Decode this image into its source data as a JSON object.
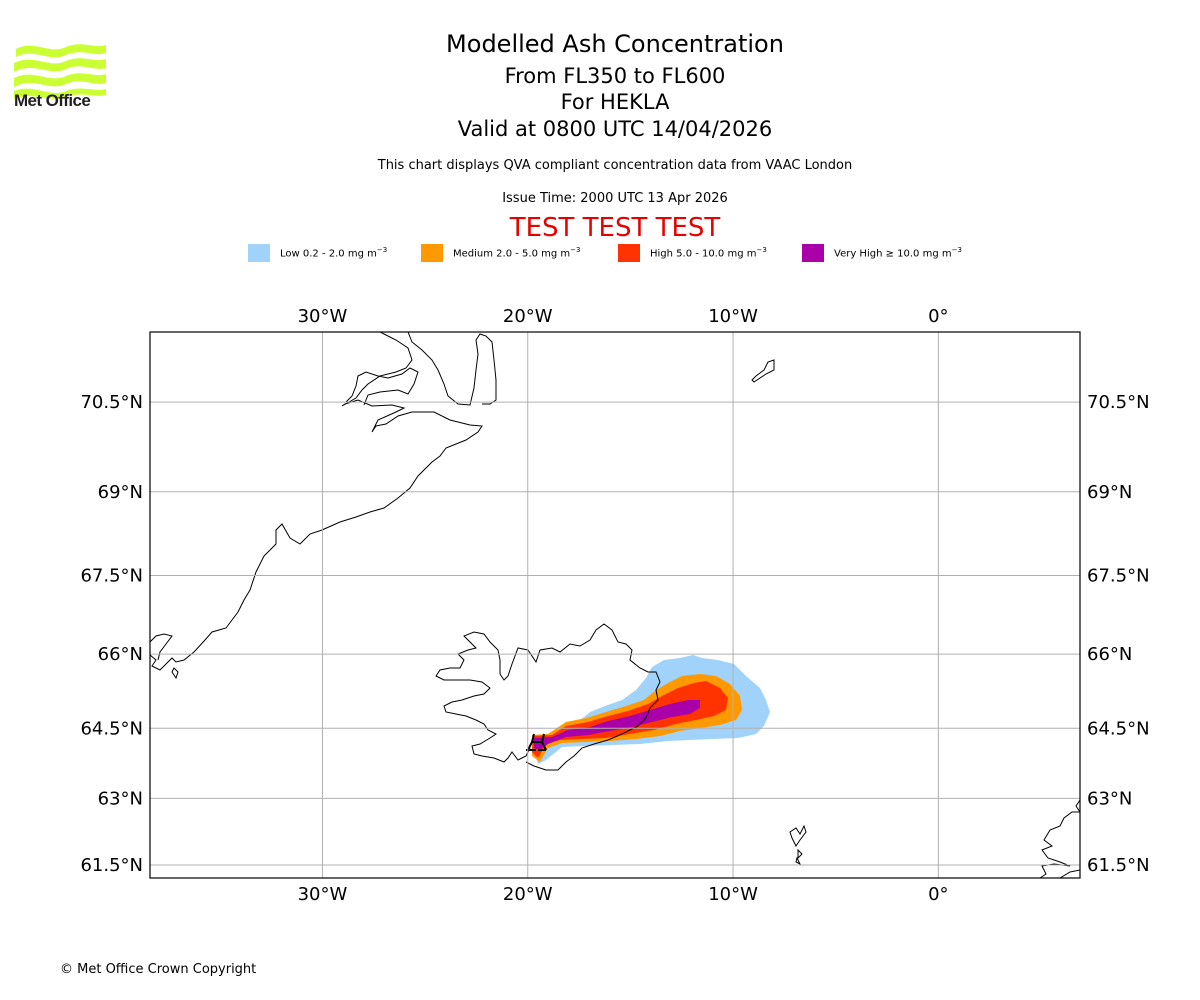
{
  "header": {
    "logo_text": "Met Office",
    "title": "Modelled Ash Concentration",
    "flight_levels": "From FL350 to FL600",
    "volcano": "For HEKLA",
    "valid_time": "Valid at 0800 UTC 14/04/2026",
    "description": "This chart displays QVA compliant concentration data from VAAC London",
    "issue_time": "Issue Time: 2000 UTC 13 Apr 2026",
    "test_banner": "TEST TEST TEST"
  },
  "colors": {
    "logo_green": "#ccff33",
    "low": "#a0d2fa",
    "medium": "#ff9900",
    "high": "#ff3300",
    "very_high": "#aa00aa",
    "test_banner": "#e60000",
    "gridline": "#b0b0b0"
  },
  "legend": [
    {
      "level": "Low",
      "text": "Low 0.2 - 2.0 mg m",
      "exp": "−3",
      "color": "#a0d2fa"
    },
    {
      "level": "Medium",
      "text": "Medium 2.0 - 5.0 mg m",
      "exp": "−3",
      "color": "#ff9900"
    },
    {
      "level": "High",
      "text": "High 5.0 - 10.0 mg m",
      "exp": "−3",
      "color": "#ff3300"
    },
    {
      "level": "Very High",
      "text": "Very High  ≥  10.0 mg m",
      "exp": "−3",
      "color": "#aa00aa"
    }
  ],
  "map": {
    "extent": {
      "lon_min": -38.4,
      "lon_max": 6.9,
      "lat_min": 61.2,
      "lat_max": 71.6
    },
    "lon_ticks": [
      {
        "value": -30,
        "label": "30°W"
      },
      {
        "value": -20,
        "label": "20°W"
      },
      {
        "value": -10,
        "label": "10°W"
      },
      {
        "value": 0,
        "label": "0°"
      }
    ],
    "lat_ticks": [
      {
        "value": 70.5,
        "label": "70.5°N"
      },
      {
        "value": 69,
        "label": "69°N"
      },
      {
        "value": 67.5,
        "label": "67.5°N"
      },
      {
        "value": 66,
        "label": "66°N"
      },
      {
        "value": 64.5,
        "label": "64.5°N"
      },
      {
        "value": 63,
        "label": "63°N"
      },
      {
        "value": 61.5,
        "label": "61.5°N"
      }
    ],
    "volcano": {
      "name": "HEKLA",
      "lat": 63.98,
      "lon": -19.7,
      "symbol": "volcano-marker"
    }
  },
  "footer": {
    "copyright": "© Met Office Crown Copyright"
  }
}
